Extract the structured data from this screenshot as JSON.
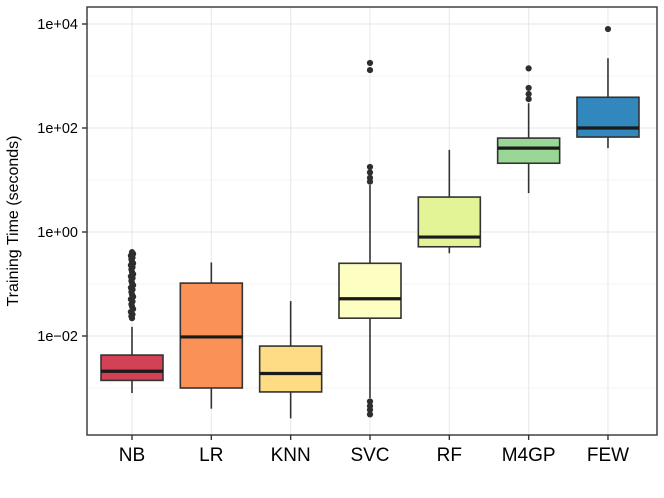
{
  "chart_data": {
    "type": "boxplot",
    "title": "",
    "xlabel": "",
    "ylabel": "Training Time (seconds)",
    "y_scale": "log10",
    "ylim": [
      0.000125,
      21000
    ],
    "grid": "on",
    "legend": "none",
    "y_major_breaks": [
      10000,
      100,
      1,
      0.01
    ],
    "y_major_labels": [
      "1e+04",
      "1e+02",
      "1e+00",
      "1e−02"
    ],
    "y_minor_breaks": [
      1000,
      10,
      0.1,
      0.001
    ],
    "categories": [
      "NB",
      "LR",
      "KNN",
      "SVC",
      "RF",
      "M4GP",
      "FEW"
    ],
    "series": [
      {
        "name": "NB",
        "color": "#D34155",
        "whisker_low": 0.0008,
        "q1": 0.0014,
        "median": 0.0021,
        "q3": 0.0043,
        "whisker_high": 0.015,
        "outliers": [
          0.41,
          0.38,
          0.35,
          0.32,
          0.3,
          0.27,
          0.25,
          0.23,
          0.21,
          0.19,
          0.17,
          0.155,
          0.14,
          0.13,
          0.115,
          0.105,
          0.095,
          0.085,
          0.078,
          0.07,
          0.063,
          0.057,
          0.051,
          0.046,
          0.041,
          0.037,
          0.033,
          0.029,
          0.026,
          0.024,
          0.022
        ]
      },
      {
        "name": "LR",
        "color": "#FA9157",
        "whisker_low": 0.0004,
        "q1": 0.001,
        "median": 0.0096,
        "q3": 0.104,
        "whisker_high": 0.26,
        "outliers": []
      },
      {
        "name": "KNN",
        "color": "#FEDC85",
        "whisker_low": 0.00026,
        "q1": 0.00084,
        "median": 0.0019,
        "q3": 0.0064,
        "whisker_high": 0.047,
        "outliers": []
      },
      {
        "name": "SVC",
        "color": "#FDFEC2",
        "whisker_low": 0.00064,
        "q1": 0.022,
        "median": 0.052,
        "q3": 0.25,
        "whisker_high": 8.0,
        "outliers": [
          1780,
          1300,
          17.8,
          14,
          11,
          9.3,
          0.00055,
          0.00045,
          0.00038,
          0.00031
        ]
      },
      {
        "name": "RF",
        "color": "#E3F497",
        "whisker_low": 0.39,
        "q1": 0.52,
        "median": 0.8,
        "q3": 4.7,
        "whisker_high": 38,
        "outliers": []
      },
      {
        "name": "M4GP",
        "color": "#9AD696",
        "whisker_low": 5.6,
        "q1": 21,
        "median": 41,
        "q3": 64,
        "whisker_high": 300,
        "outliers": [
          1400,
          590,
          450,
          360
        ]
      },
      {
        "name": "FEW",
        "color": "#3287BC",
        "whisker_low": 41,
        "q1": 67,
        "median": 100,
        "q3": 390,
        "whisker_high": 2200,
        "outliers": [
          8000
        ]
      }
    ],
    "style": {
      "panel_border_color": "#333333",
      "box_border_color": "#333333",
      "median_color": "#1a1a1a",
      "whisker_color": "#333333",
      "outlier_color": "#2e2e2e",
      "grid_major_color": "#e9e9e9",
      "grid_minor_color": "#f3f3f3",
      "text_color": "#000000",
      "panel_background": "#ffffff"
    }
  }
}
